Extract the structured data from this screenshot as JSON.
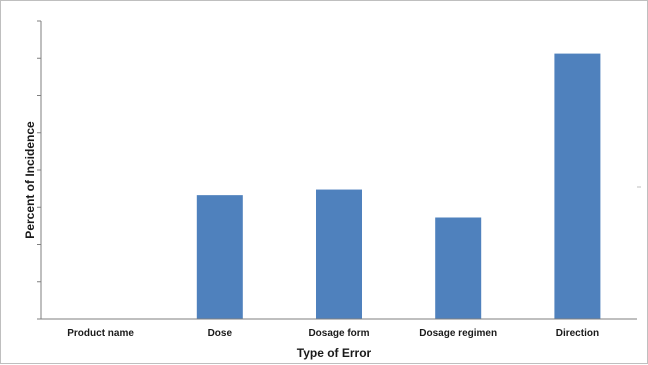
{
  "chart_data": {
    "type": "bar",
    "title": "",
    "xlabel": "Type of Error",
    "ylabel": "Percent of Incidence",
    "categories": [
      "Product name",
      "Dose",
      "Dosage form",
      "Dosage regimen",
      "Direction"
    ],
    "values": [
      0,
      13.3,
      13.9,
      10.9,
      28.5
    ],
    "ylim": [
      0,
      32
    ],
    "y_tick_labels_shown": false,
    "grid": false,
    "legend": "none",
    "bar_color": "#4f81bd"
  }
}
